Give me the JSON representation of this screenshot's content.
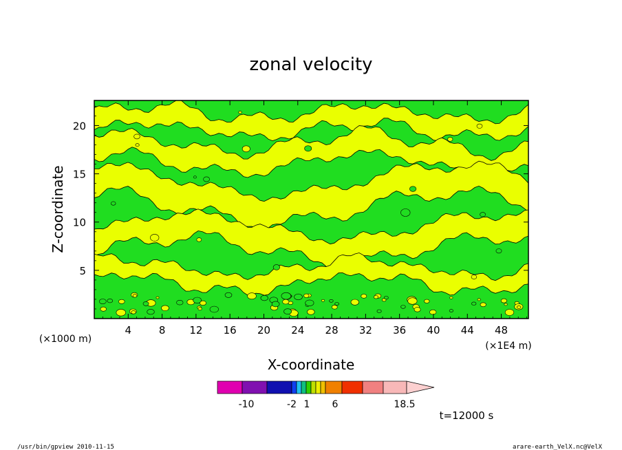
{
  "chart_data": {
    "type": "heatmap",
    "title": "zonal velocity",
    "xlabel": "X-coordinate",
    "ylabel": "Z-coordinate",
    "x_unit_note": "(×1E4 m)",
    "y_unit_note": "(×1000 m)",
    "x_ticks": [
      "4",
      "8",
      "12",
      "16",
      "20",
      "24",
      "28",
      "32",
      "36",
      "40",
      "44",
      "48"
    ],
    "x_tick_values": [
      4,
      8,
      12,
      16,
      20,
      24,
      28,
      32,
      36,
      40,
      44,
      48
    ],
    "y_ticks": [
      "5",
      "10",
      "15",
      "20"
    ],
    "y_tick_values": [
      5,
      10,
      15,
      20
    ],
    "xlim": [
      0,
      51.2
    ],
    "ylim": [
      0,
      22.6
    ],
    "colorbar": {
      "labels": [
        "-10",
        "-2",
        "1",
        "6",
        "18.5"
      ],
      "colors": [
        "#e000b0",
        "#8010b0",
        "#1010b0",
        "#1040f0",
        "#20c0f0",
        "#10c080",
        "#30d000",
        "#c0e000",
        "#f0f000",
        "#f0c000",
        "#f08000",
        "#f03000",
        "#f08080",
        "#f8b8b8",
        "#fcd0d0"
      ]
    },
    "fill_colors": {
      "low": "#20dd20",
      "high": "#eaff00"
    },
    "time_label": "t=12000 s"
  },
  "footer": {
    "left": "/usr/bin/gpview   2010-11-15",
    "right": "arare-earth_VelX.nc@VelX"
  }
}
